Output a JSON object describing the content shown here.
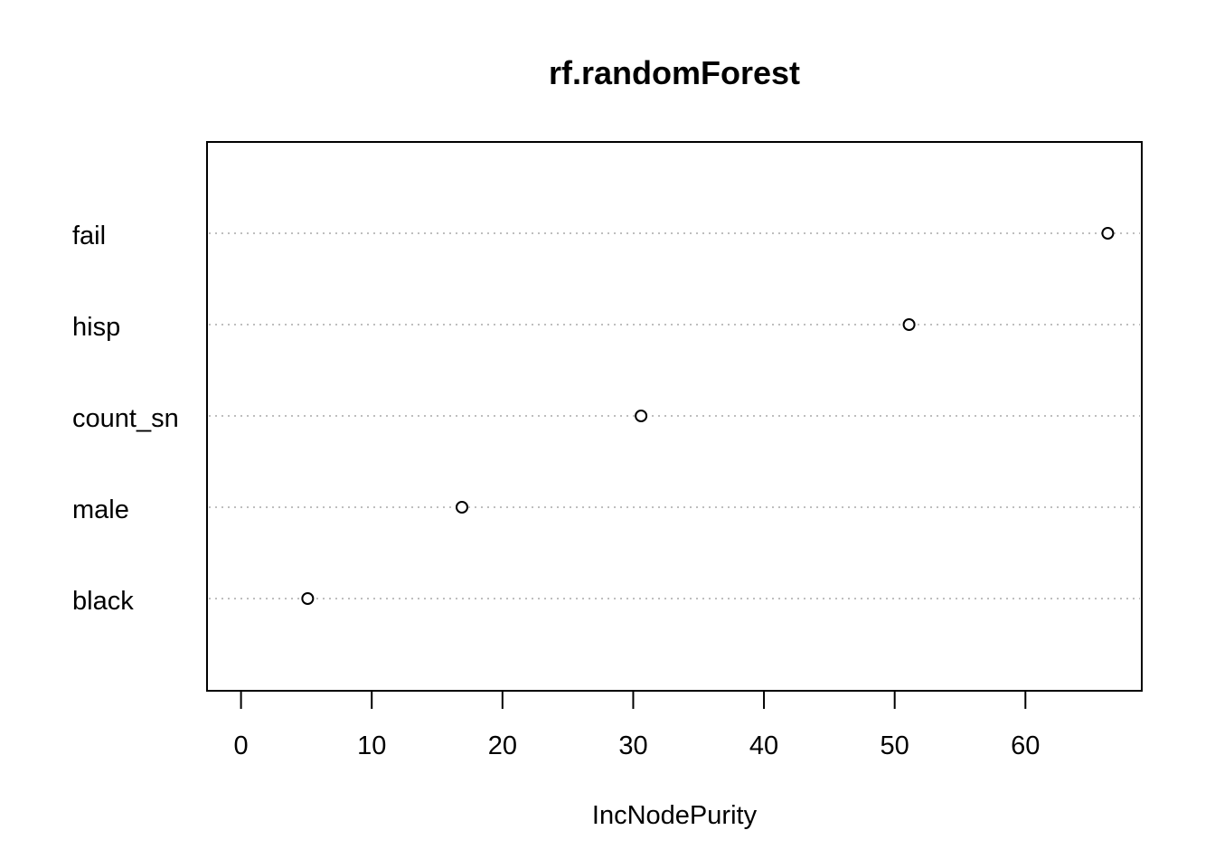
{
  "chart_data": {
    "type": "scatter",
    "title": "rf.randomForest",
    "xlabel": "IncNodePurity",
    "ylabel": "",
    "categories": [
      "fail",
      "hisp",
      "count_sn",
      "male",
      "black"
    ],
    "series": [
      {
        "values": [
          66.3,
          51.1,
          30.6,
          16.9,
          5.1
        ]
      }
    ],
    "xlim": [
      -2.6,
      68.9
    ],
    "x_ticks": [
      0,
      10,
      20,
      30,
      40,
      50,
      60
    ],
    "grid": "dotted horizontal guide lines per category",
    "legend": "none"
  }
}
